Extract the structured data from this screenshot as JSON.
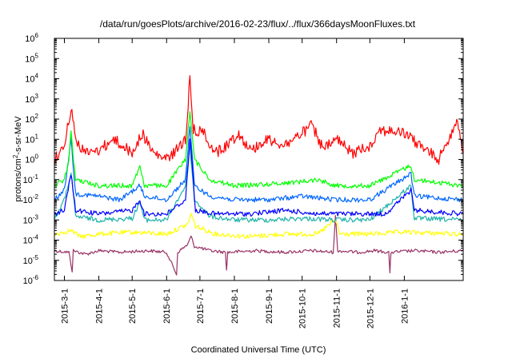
{
  "chart_data": {
    "type": "line",
    "title": "/data/run/goesPlots/archive/2016-02-23/flux/../flux/366daysMoonFluxes.txt",
    "xlabel": "Coordinated Universal Time (UTC)",
    "ylabel": {
      "prefix": "protons/cm",
      "sup": "2",
      "suffix": "-s-sr-MeV"
    },
    "yscale": "log",
    "ylim": [
      1e-06,
      1000000.0
    ],
    "xlim": [
      "2015-02-20",
      "2016-02-23"
    ],
    "y_ticks": [
      {
        "value": 1e-06,
        "base": "10",
        "exp": "-6"
      },
      {
        "value": 1e-05,
        "base": "10",
        "exp": "-5"
      },
      {
        "value": 0.0001,
        "base": "10",
        "exp": "-4"
      },
      {
        "value": 0.001,
        "base": "10",
        "exp": "-3"
      },
      {
        "value": 0.01,
        "base": "10",
        "exp": "-2"
      },
      {
        "value": 0.1,
        "base": "10",
        "exp": "-1"
      },
      {
        "value": 1,
        "base": "10",
        "exp": "0"
      },
      {
        "value": 10,
        "base": "10",
        "exp": "1"
      },
      {
        "value": 100,
        "base": "10",
        "exp": "2"
      },
      {
        "value": 1000,
        "base": "10",
        "exp": "3"
      },
      {
        "value": 10000,
        "base": "10",
        "exp": "4"
      },
      {
        "value": 100000,
        "base": "10",
        "exp": "5"
      },
      {
        "value": 1000000,
        "base": "10",
        "exp": "6"
      }
    ],
    "x_ticks": [
      {
        "date": "2015-03-01",
        "label": "2015-3-1"
      },
      {
        "date": "2015-04-01",
        "label": "2015-4-1"
      },
      {
        "date": "2015-05-01",
        "label": "2015-5-1"
      },
      {
        "date": "2015-06-01",
        "label": "2015-6-1"
      },
      {
        "date": "2015-07-01",
        "label": "2015-7-1"
      },
      {
        "date": "2015-08-01",
        "label": "2015-8-1"
      },
      {
        "date": "2015-09-01",
        "label": "2015-9-1"
      },
      {
        "date": "2015-10-01",
        "label": "2015-10-1"
      },
      {
        "date": "2015-11-01",
        "label": "2015-11-1"
      },
      {
        "date": "2015-12-01",
        "label": "2015-12-1"
      },
      {
        "date": "2016-01-01",
        "label": "2016-1-1"
      }
    ],
    "grid": false,
    "legend": "none",
    "series": [
      {
        "color": "#993366",
        "values": [
          [
            "2015-02-20",
            3e-05
          ],
          [
            "2015-03-05",
            2.5e-05
          ],
          [
            "2015-03-08",
            3e-06
          ],
          [
            "2015-03-09",
            3e-05
          ],
          [
            "2015-03-20",
            2e-05
          ],
          [
            "2015-04-01",
            3e-05
          ],
          [
            "2015-04-20",
            2.5e-05
          ],
          [
            "2015-05-15",
            3e-05
          ],
          [
            "2015-06-01",
            2.5e-05
          ],
          [
            "2015-06-10",
            2e-06
          ],
          [
            "2015-06-11",
            2.5e-05
          ],
          [
            "2015-06-20",
            6e-05
          ],
          [
            "2015-06-23",
            0.00015
          ],
          [
            "2015-06-26",
            5e-05
          ],
          [
            "2015-07-10",
            3e-05
          ],
          [
            "2015-07-24",
            2.5e-05
          ],
          [
            "2015-07-25",
            3e-06
          ],
          [
            "2015-07-26",
            2.5e-05
          ],
          [
            "2015-08-20",
            3e-05
          ],
          [
            "2015-09-15",
            2.5e-05
          ],
          [
            "2015-10-10",
            3e-05
          ],
          [
            "2015-10-29",
            2.5e-05
          ],
          [
            "2015-10-31",
            0.0015
          ],
          [
            "2015-11-02",
            3e-05
          ],
          [
            "2015-11-20",
            2.5e-05
          ],
          [
            "2015-12-05",
            3e-05
          ],
          [
            "2015-12-18",
            2.5e-05
          ],
          [
            "2015-12-19",
            2e-06
          ],
          [
            "2015-12-20",
            2.5e-05
          ],
          [
            "2016-01-10",
            3e-05
          ],
          [
            "2016-02-01",
            2.5e-05
          ],
          [
            "2016-02-23",
            3e-05
          ]
        ]
      },
      {
        "color": "#ffff00",
        "values": [
          [
            "2015-02-20",
            0.0002
          ],
          [
            "2015-03-07",
            0.0003
          ],
          [
            "2015-03-15",
            0.00015
          ],
          [
            "2015-04-01",
            0.0002
          ],
          [
            "2015-05-01",
            0.00025
          ],
          [
            "2015-06-01",
            0.0002
          ],
          [
            "2015-06-20",
            0.0006
          ],
          [
            "2015-06-23",
            0.002
          ],
          [
            "2015-06-27",
            0.0005
          ],
          [
            "2015-07-15",
            0.0002
          ],
          [
            "2015-08-15",
            0.00015
          ],
          [
            "2015-09-15",
            0.0002
          ],
          [
            "2015-10-15",
            0.0002
          ],
          [
            "2015-10-31",
            0.001
          ],
          [
            "2015-11-04",
            0.0002
          ],
          [
            "2015-12-01",
            0.0002
          ],
          [
            "2016-01-01",
            0.00025
          ],
          [
            "2016-02-23",
            0.0002
          ]
        ]
      },
      {
        "color": "#20b2aa",
        "values": [
          [
            "2015-02-20",
            0.001
          ],
          [
            "2015-03-01",
            0.01
          ],
          [
            "2015-03-07",
            0.2
          ],
          [
            "2015-03-11",
            0.0015
          ],
          [
            "2015-04-01",
            0.001
          ],
          [
            "2015-05-01",
            0.0012
          ],
          [
            "2015-05-08",
            0.008
          ],
          [
            "2015-05-12",
            0.001
          ],
          [
            "2015-06-01",
            0.001
          ],
          [
            "2015-06-18",
            0.05
          ],
          [
            "2015-06-22",
            5.0
          ],
          [
            "2015-06-26",
            0.01
          ],
          [
            "2015-07-10",
            0.0015
          ],
          [
            "2015-08-01",
            0.001
          ],
          [
            "2015-09-01",
            0.001
          ],
          [
            "2015-10-01",
            0.0012
          ],
          [
            "2015-11-01",
            0.001
          ],
          [
            "2015-12-01",
            0.001
          ],
          [
            "2016-01-07",
            0.05
          ],
          [
            "2016-01-10",
            0.0012
          ],
          [
            "2016-02-23",
            0.001
          ]
        ]
      },
      {
        "color": "#0066ff",
        "values": [
          [
            "2015-02-20",
            0.01
          ],
          [
            "2015-03-01",
            0.03
          ],
          [
            "2015-03-07",
            10.0
          ],
          [
            "2015-03-11",
            0.02
          ],
          [
            "2015-04-01",
            0.015
          ],
          [
            "2015-04-20",
            0.01
          ],
          [
            "2015-05-08",
            0.05
          ],
          [
            "2015-05-12",
            0.015
          ],
          [
            "2015-06-01",
            0.01
          ],
          [
            "2015-06-18",
            0.1
          ],
          [
            "2015-06-22",
            50.0
          ],
          [
            "2015-06-26",
            0.05
          ],
          [
            "2015-07-10",
            0.015
          ],
          [
            "2015-08-01",
            0.01
          ],
          [
            "2015-09-01",
            0.01
          ],
          [
            "2015-10-01",
            0.015
          ],
          [
            "2015-10-31",
            0.01
          ],
          [
            "2015-12-01",
            0.01
          ],
          [
            "2016-01-07",
            0.2
          ],
          [
            "2016-01-10",
            0.015
          ],
          [
            "2016-02-23",
            0.01
          ]
        ]
      },
      {
        "color": "#0000ff",
        "values": [
          [
            "2015-02-20",
            0.002
          ],
          [
            "2015-03-01",
            0.003
          ],
          [
            "2015-03-07",
            0.2
          ],
          [
            "2015-03-11",
            0.003
          ],
          [
            "2015-04-01",
            0.002
          ],
          [
            "2015-05-01",
            0.003
          ],
          [
            "2015-05-08",
            0.01
          ],
          [
            "2015-05-12",
            0.002
          ],
          [
            "2015-06-01",
            0.002
          ],
          [
            "2015-06-18",
            0.01
          ],
          [
            "2015-06-22",
            10.0
          ],
          [
            "2015-06-24",
            0.5
          ],
          [
            "2015-06-27",
            0.003
          ],
          [
            "2015-07-15",
            0.002
          ],
          [
            "2015-08-15",
            0.002
          ],
          [
            "2015-09-15",
            0.003
          ],
          [
            "2015-10-15",
            0.002
          ],
          [
            "2015-11-15",
            0.002
          ],
          [
            "2015-12-15",
            0.002
          ],
          [
            "2016-01-07",
            0.03
          ],
          [
            "2016-01-10",
            0.003
          ],
          [
            "2016-02-23",
            0.002
          ]
        ]
      },
      {
        "color": "#00ff00",
        "values": [
          [
            "2015-02-20",
            0.05
          ],
          [
            "2015-03-01",
            0.1
          ],
          [
            "2015-03-05",
            1.0
          ],
          [
            "2015-03-07",
            20.0
          ],
          [
            "2015-03-11",
            0.1
          ],
          [
            "2015-04-01",
            0.05
          ],
          [
            "2015-05-01",
            0.05
          ],
          [
            "2015-05-08",
            0.5
          ],
          [
            "2015-05-12",
            0.05
          ],
          [
            "2015-06-01",
            0.05
          ],
          [
            "2015-06-18",
            1.0
          ],
          [
            "2015-06-22",
            300.0
          ],
          [
            "2015-06-26",
            1.0
          ],
          [
            "2015-07-10",
            0.1
          ],
          [
            "2015-08-01",
            0.05
          ],
          [
            "2015-09-01",
            0.06
          ],
          [
            "2015-10-01",
            0.08
          ],
          [
            "2015-10-15",
            0.1
          ],
          [
            "2015-11-01",
            0.05
          ],
          [
            "2015-12-01",
            0.05
          ],
          [
            "2016-01-07",
            0.5
          ],
          [
            "2016-01-10",
            0.1
          ],
          [
            "2016-02-23",
            0.05
          ]
        ]
      },
      {
        "color": "#ff0000",
        "values": [
          [
            "2015-02-20",
            1.0
          ],
          [
            "2015-02-27",
            3.0
          ],
          [
            "2015-03-03",
            20.0
          ],
          [
            "2015-03-07",
            400.0
          ],
          [
            "2015-03-11",
            10.0
          ],
          [
            "2015-03-20",
            2.0
          ],
          [
            "2015-04-01",
            3.0
          ],
          [
            "2015-04-15",
            10.0
          ],
          [
            "2015-05-01",
            2.0
          ],
          [
            "2015-05-10",
            20.0
          ],
          [
            "2015-05-20",
            2.0
          ],
          [
            "2015-06-01",
            1.0
          ],
          [
            "2015-06-10",
            3.0
          ],
          [
            "2015-06-18",
            10.0
          ],
          [
            "2015-06-22",
            10000.0
          ],
          [
            "2015-06-25",
            30.0
          ],
          [
            "2015-07-05",
            20.0
          ],
          [
            "2015-07-15",
            2.0
          ],
          [
            "2015-07-25",
            5.0
          ],
          [
            "2015-08-05",
            20.0
          ],
          [
            "2015-08-15",
            3.0
          ],
          [
            "2015-09-01",
            10.0
          ],
          [
            "2015-09-15",
            5.0
          ],
          [
            "2015-10-01",
            20.0
          ],
          [
            "2015-10-10",
            50.0
          ],
          [
            "2015-10-20",
            3.0
          ],
          [
            "2015-11-01",
            10.0
          ],
          [
            "2015-11-15",
            2.0
          ],
          [
            "2015-12-01",
            5.0
          ],
          [
            "2015-12-10",
            30.0
          ],
          [
            "2016-01-01",
            20.0
          ],
          [
            "2016-01-15",
            5.0
          ],
          [
            "2016-02-01",
            1.0
          ],
          [
            "2016-02-18",
            100.0
          ],
          [
            "2016-02-23",
            2.0
          ]
        ]
      }
    ]
  }
}
